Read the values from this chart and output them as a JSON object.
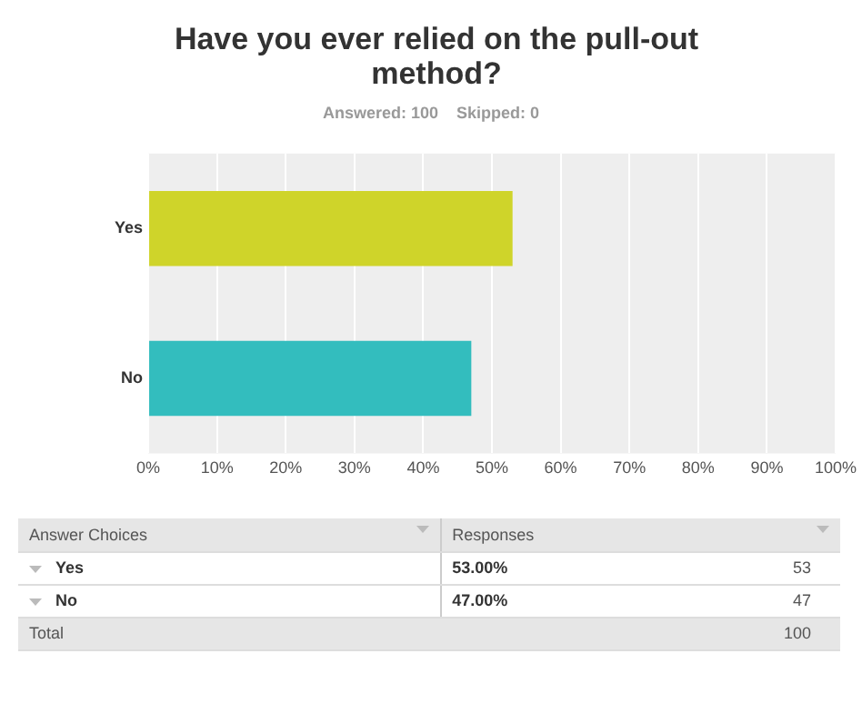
{
  "chart_data": {
    "type": "bar",
    "orientation": "horizontal",
    "title": "Have you ever relied on the pull-out method?",
    "subtitle": "Answered: 100    Skipped: 0",
    "categories": [
      "Yes",
      "No"
    ],
    "values": [
      53,
      47
    ],
    "colors": [
      "#cfd42a",
      "#33bdbe"
    ],
    "xlim": [
      0,
      100
    ],
    "xticks": [
      {
        "value": 0,
        "label": "0%"
      },
      {
        "value": 10,
        "label": "10%"
      },
      {
        "value": 20,
        "label": "20%"
      },
      {
        "value": 30,
        "label": "30%"
      },
      {
        "value": 40,
        "label": "40%"
      },
      {
        "value": 50,
        "label": "50%"
      },
      {
        "value": 60,
        "label": "60%"
      },
      {
        "value": 70,
        "label": "70%"
      },
      {
        "value": 80,
        "label": "80%"
      },
      {
        "value": 90,
        "label": "90%"
      },
      {
        "value": 100,
        "label": "100%"
      }
    ],
    "grid": "x",
    "legend": false,
    "annotations": [
      "Answer Choices",
      "Responses",
      "53.00%",
      "53",
      "47.00%",
      "47",
      "Total",
      "100"
    ]
  }
}
